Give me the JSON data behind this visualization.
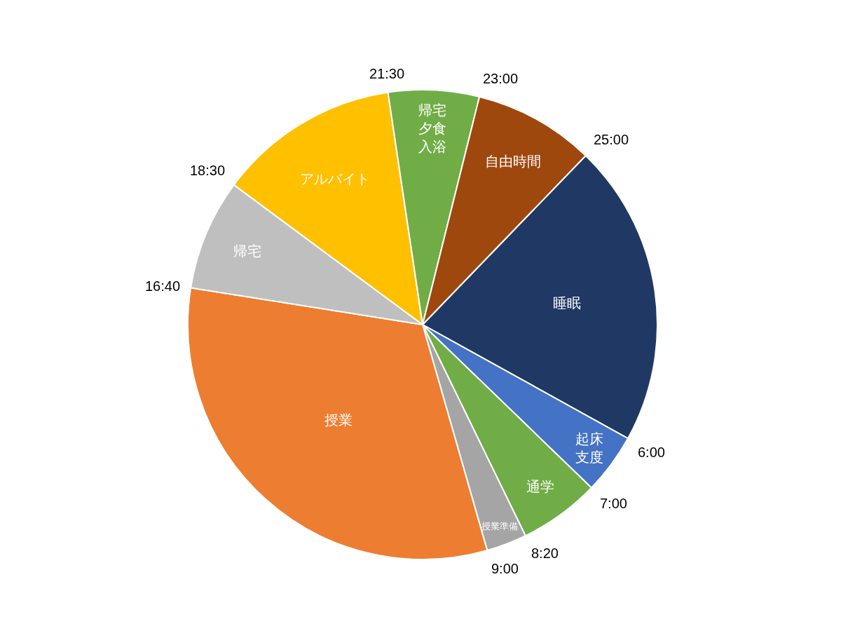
{
  "chart_data": {
    "type": "pie",
    "categories": [
      "睡眠",
      "起床支度",
      "通学",
      "授業準備",
      "授業",
      "帰宅",
      "アルバイト",
      "帰宅夕食入浴",
      "自由時間"
    ],
    "values": [
      20.83,
      4.17,
      5.56,
      2.78,
      31.94,
      7.64,
      12.5,
      6.25,
      8.33
    ],
    "colors": [
      "#203864",
      "#4472c4",
      "#70ad47",
      "#a5a5a5",
      "#ed7d31",
      "#bfbfbf",
      "#ffc000",
      "#70ad47",
      "#9e480e"
    ],
    "annotations": [
      "25:00",
      "6:00",
      "7:00",
      "8:20",
      "9:00",
      "16:40",
      "18:30",
      "21:30",
      "23:00"
    ],
    "legend": false
  }
}
